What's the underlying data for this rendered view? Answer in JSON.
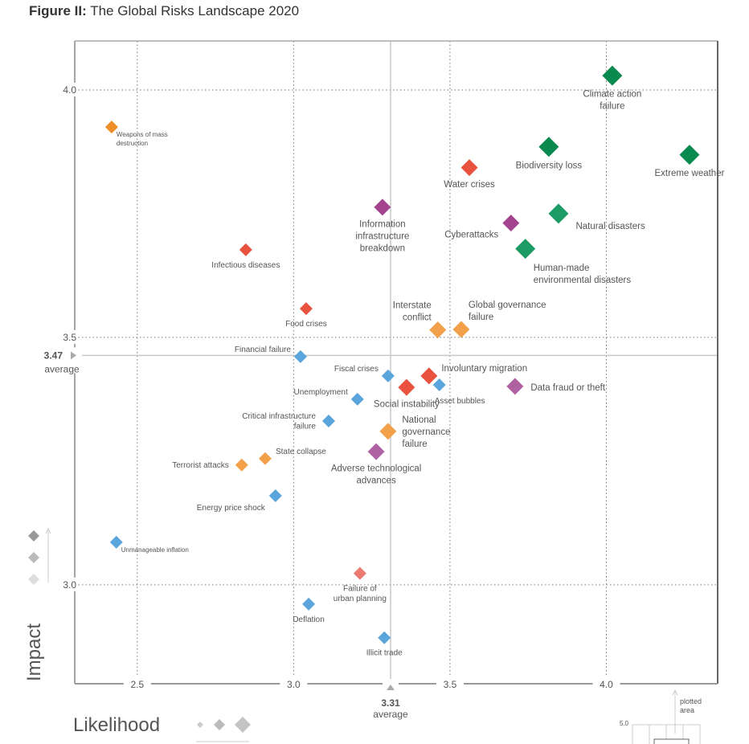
{
  "figure": {
    "title_prefix": "Figure II:",
    "title": "The Global Risks Landscape 2020"
  },
  "chart_data": {
    "type": "scatter",
    "title": "The Global Risks Landscape 2020",
    "xlabel": "Likelihood",
    "ylabel": "Impact",
    "xlim": [
      2.3,
      4.356
    ],
    "ylim": [
      2.8,
      4.099
    ],
    "xticks": [
      {
        "v": 2.5,
        "label": "2.5"
      },
      {
        "v": 3.0,
        "label": "3.0"
      },
      {
        "v": 3.5,
        "label": "3.5"
      },
      {
        "v": 4.0,
        "label": "4.0"
      }
    ],
    "yticks": [
      {
        "v": 3.0,
        "label": "3.0"
      },
      {
        "v": 3.5,
        "label": "3.5"
      },
      {
        "v": 4.0,
        "label": "4.0"
      }
    ],
    "grid": "dotted at ticks",
    "x_average": {
      "value": 3.31,
      "label": "3.31",
      "sublabel": "average"
    },
    "y_average": {
      "value": 3.47,
      "label": "3.47",
      "sublabel": "average"
    },
    "categories": {
      "economic": "#5aa5dc",
      "environmental": "#0a8a4e",
      "environmental_light": "#1d9b64",
      "geopolitical": "#f2a04a",
      "geopolitical_dark": "#ee8e28",
      "societal": "#e8523f",
      "societal_light": "#ec7a70",
      "technological": "#a4448f",
      "technological_light": "#b061a2"
    },
    "points": [
      {
        "name": "Weapons of mass destruction",
        "lines": [
          "Weapons of mass",
          "destruction"
        ],
        "x": 2.418,
        "y": 3.925,
        "cat": "geopolitical_dark",
        "size": 1,
        "pos": "right-small"
      },
      {
        "name": "Climate action failure",
        "lines": [
          "Climate action",
          "failure"
        ],
        "x": 4.019,
        "y": 4.029,
        "cat": "environmental",
        "size": 3,
        "pos": "below"
      },
      {
        "name": "Biodiversity loss",
        "lines": [
          "Biodiversity loss"
        ],
        "x": 3.816,
        "y": 3.885,
        "cat": "environmental",
        "size": 3,
        "pos": "below"
      },
      {
        "name": "Extreme weather",
        "lines": [
          "Extreme weather"
        ],
        "x": 4.266,
        "y": 3.869,
        "cat": "environmental",
        "size": 3,
        "pos": "below"
      },
      {
        "name": "Water crises",
        "lines": [
          "Water crises"
        ],
        "x": 3.562,
        "y": 3.843,
        "cat": "societal",
        "size": 2,
        "pos": "below"
      },
      {
        "name": "Information infrastructure breakdown",
        "lines": [
          "Information",
          "infrastructure",
          "breakdown"
        ],
        "x": 3.284,
        "y": 3.763,
        "cat": "technological",
        "size": 2,
        "pos": "below"
      },
      {
        "name": "Natural disasters",
        "lines": [
          "Natural disasters"
        ],
        "x": 3.847,
        "y": 3.75,
        "cat": "environmental_light",
        "size": 3,
        "pos": "right-low"
      },
      {
        "name": "Cyberattacks",
        "lines": [
          "Cyberattacks"
        ],
        "x": 3.695,
        "y": 3.731,
        "cat": "technological",
        "size": 2,
        "pos": "left-low"
      },
      {
        "name": "Human-made environmental disasters",
        "lines": [
          "Human-made",
          "environmental disasters"
        ],
        "x": 3.741,
        "y": 3.679,
        "cat": "environmental_light",
        "size": 3,
        "pos": "below-right"
      },
      {
        "name": "Infectious diseases",
        "lines": [
          "Infectious diseases"
        ],
        "x": 2.847,
        "y": 3.677,
        "cat": "societal",
        "size": 1,
        "pos": "below"
      },
      {
        "name": "Food crises",
        "lines": [
          "Food crises"
        ],
        "x": 3.04,
        "y": 3.558,
        "cat": "societal",
        "size": 1,
        "pos": "below"
      },
      {
        "name": "Interstate conflict",
        "lines": [
          "Interstate",
          "conflict"
        ],
        "x": 3.461,
        "y": 3.515,
        "cat": "geopolitical",
        "size": 2,
        "pos": "above-left"
      },
      {
        "name": "Global governance failure",
        "lines": [
          "Global governance",
          "failure"
        ],
        "x": 3.536,
        "y": 3.516,
        "cat": "geopolitical",
        "size": 2,
        "pos": "above-right"
      },
      {
        "name": "Financial failure",
        "lines": [
          "Financial failure"
        ],
        "x": 3.022,
        "y": 3.461,
        "cat": "economic",
        "size": 1,
        "pos": "left-high"
      },
      {
        "name": "Fiscal crises",
        "lines": [
          "Fiscal crises"
        ],
        "x": 3.302,
        "y": 3.422,
        "cat": "economic",
        "size": 1,
        "pos": "left-high"
      },
      {
        "name": "Involuntary migration",
        "lines": [
          "Involuntary migration"
        ],
        "x": 3.433,
        "y": 3.422,
        "cat": "societal",
        "size": 2,
        "pos": "right-high"
      },
      {
        "name": "Social instability",
        "lines": [
          "Social instability"
        ],
        "x": 3.361,
        "y": 3.399,
        "cat": "societal",
        "size": 2,
        "pos": "below"
      },
      {
        "name": "Asset bubbles",
        "lines": [
          "Asset bubbles"
        ],
        "x": 3.466,
        "y": 3.404,
        "cat": "economic",
        "size": 1,
        "pos": "below-right"
      },
      {
        "name": "Data fraud or theft",
        "lines": [
          "Data fraud or theft"
        ],
        "x": 3.708,
        "y": 3.401,
        "cat": "technological_light",
        "size": 2,
        "pos": "right"
      },
      {
        "name": "Unemployment",
        "lines": [
          "Unemployment"
        ],
        "x": 3.204,
        "y": 3.375,
        "cat": "economic",
        "size": 1,
        "pos": "left-high"
      },
      {
        "name": "Critical infrastructure failure",
        "lines": [
          "Critical infrastructure",
          "failure"
        ],
        "x": 3.112,
        "y": 3.331,
        "cat": "economic",
        "size": 1,
        "pos": "left"
      },
      {
        "name": "National governance failure",
        "lines": [
          "National",
          "governance",
          "failure"
        ],
        "x": 3.302,
        "y": 3.31,
        "cat": "geopolitical",
        "size": 2,
        "pos": "right-3"
      },
      {
        "name": "Adverse technological advances",
        "lines": [
          "Adverse technological",
          "advances"
        ],
        "x": 3.264,
        "y": 3.269,
        "cat": "technological_light",
        "size": 2,
        "pos": "below"
      },
      {
        "name": "State collapse",
        "lines": [
          "State collapse"
        ],
        "x": 2.909,
        "y": 3.255,
        "cat": "geopolitical",
        "size": 1,
        "pos": "right-high"
      },
      {
        "name": "Terrorist attacks",
        "lines": [
          "Terrorist attacks"
        ],
        "x": 2.834,
        "y": 3.242,
        "cat": "geopolitical",
        "size": 1,
        "pos": "left"
      },
      {
        "name": "Energy price shock",
        "lines": [
          "Energy price shock"
        ],
        "x": 2.942,
        "y": 3.18,
        "cat": "economic",
        "size": 1,
        "pos": "left-low"
      },
      {
        "name": "Unmanageable inflation",
        "lines": [
          "Unmanageable inflation"
        ],
        "x": 2.433,
        "y": 3.086,
        "cat": "economic",
        "size": 1,
        "pos": "right-small"
      },
      {
        "name": "Failure of urban planning",
        "lines": [
          "Failure of",
          "urban planning"
        ],
        "x": 3.212,
        "y": 3.023,
        "cat": "societal_light",
        "size": 1,
        "pos": "below"
      },
      {
        "name": "Deflation",
        "lines": [
          "Deflation"
        ],
        "x": 3.048,
        "y": 2.961,
        "cat": "economic",
        "size": 1,
        "pos": "below"
      },
      {
        "name": "Illicit trade",
        "lines": [
          "Illicit trade"
        ],
        "x": 3.29,
        "y": 2.893,
        "cat": "economic",
        "size": 1,
        "pos": "below"
      }
    ],
    "impact_legend": {
      "label": "Impact"
    },
    "likelihood_legend": {
      "label": "Likelihood"
    },
    "inset": {
      "label_lines": [
        "plotted",
        "area"
      ],
      "tick": "5.0"
    }
  }
}
